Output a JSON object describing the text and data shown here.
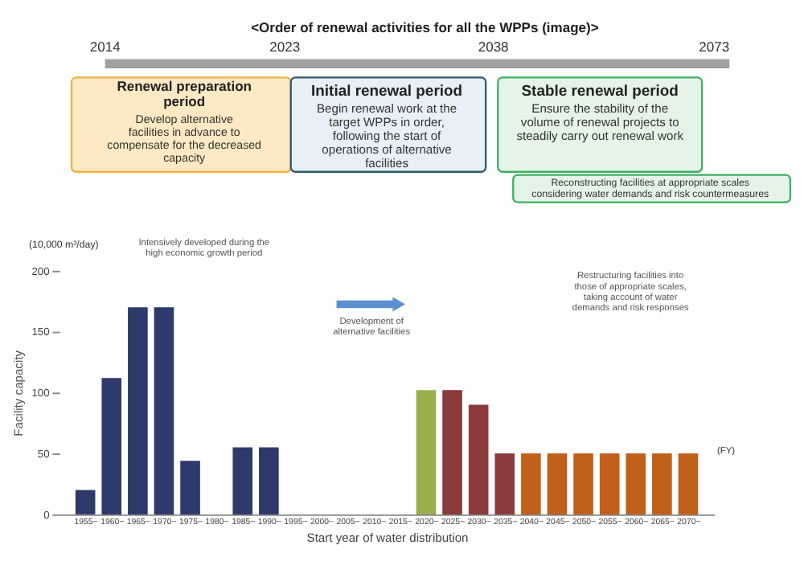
{
  "chart_data": [
    {
      "type": "other",
      "title": "<Order of renewal activities for all the WPPs (image)>",
      "annotations": [
        "2014",
        "2023",
        "2038",
        "2073",
        "Renewal preparation period",
        "Develop alternative facilities in advance to compensate for the decreased capacity",
        "Initial renewal period",
        "Begin renewal work at the target WPPs in order, following the start of operations of alternative facilities",
        "Stable renewal period",
        "Ensure the stability of the volume of renewal projects to steadily carry out renewal work",
        "Reconstructing facilities at appropriate scales considering water demands and risk countermeasures"
      ]
    },
    {
      "type": "bar",
      "xlabel": "Start year of water distribution",
      "ylabel": "Facility capacity",
      "categories": [
        "1955~",
        "1960~",
        "1965~",
        "1970~",
        "1975~",
        "1980~",
        "1985~",
        "1990~",
        "1995~",
        "2000~",
        "2005~",
        "2010~",
        "2015~",
        "2020~",
        "2025~",
        "2030~",
        "2035~",
        "2040~",
        "2045~",
        "2050~",
        "2055~",
        "2060~",
        "2065~",
        "2070~"
      ],
      "values": [
        20,
        112,
        170,
        170,
        44,
        null,
        55,
        55,
        null,
        null,
        null,
        null,
        null,
        102,
        102,
        90,
        50,
        50,
        50,
        50,
        50,
        50,
        50,
        50
      ],
      "colors": [
        "#2e3a6b",
        "#2e3a6b",
        "#2e3a6b",
        "#2e3a6b",
        "#2e3a6b",
        "#2e3a6b",
        "#2e3a6b",
        "#2e3a6b",
        "#2e3a6b",
        "#2e3a6b",
        "#2e3a6b",
        "#2e3a6b",
        "#2e3a6b",
        "#9aae4c",
        "#8b3a3a",
        "#8b3a3a",
        "#8b3a3a",
        "#c0601a",
        "#c0601a",
        "#c0601a",
        "#c0601a",
        "#c0601a",
        "#c0601a",
        "#c0601a"
      ],
      "ylim": [
        0,
        200
      ],
      "yticks": [
        0,
        50,
        100,
        150,
        200
      ],
      "grid": false,
      "legend": false,
      "annotations": [
        "(10,000 m³/day)",
        "Intensively developed during the high economic growth period",
        "Development of alternative facilities",
        "Restructuring facilities into those of appropriate scales, taking account of water demands and risk responses",
        "(FY)"
      ]
    }
  ]
}
